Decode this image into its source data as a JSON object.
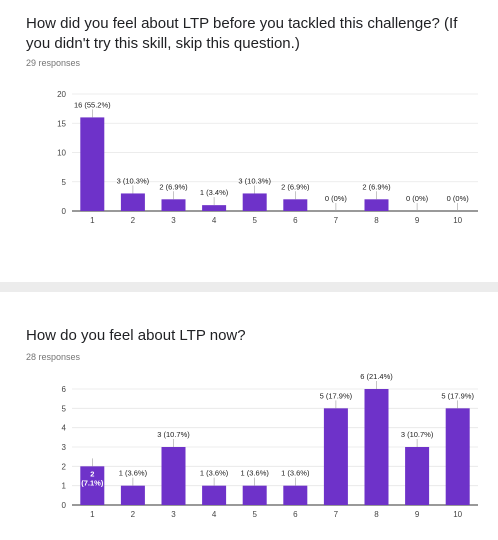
{
  "colors": {
    "bar": "#6e32c9",
    "grid": "#e6e6e6",
    "axis": "#333333"
  },
  "questions": [
    {
      "title": "How did you feel about LTP before you tackled this challenge? (If you didn't try this skill, skip this question.)",
      "responses": "29 responses"
    },
    {
      "title": "How do you feel about LTP now?",
      "responses": "28 responses"
    }
  ],
  "chart_data": [
    {
      "type": "bar",
      "categories": [
        "1",
        "2",
        "3",
        "4",
        "5",
        "6",
        "7",
        "8",
        "9",
        "10"
      ],
      "values": [
        16,
        3,
        2,
        1,
        3,
        2,
        0,
        2,
        0,
        0
      ],
      "data_labels": [
        "16 (55.2%)",
        "3 (10.3%)",
        "2 (6.9%)",
        "1 (3.4%)",
        "3 (10.3%)",
        "2 (6.9%)",
        "0 (0%)",
        "2 (6.9%)",
        "0 (0%)",
        "0 (0%)"
      ],
      "yticks": [
        "0",
        "5",
        "10",
        "15",
        "20"
      ],
      "ylim": [
        0,
        20
      ],
      "grid": true,
      "title": "",
      "xlabel": "",
      "ylabel": ""
    },
    {
      "type": "bar",
      "categories": [
        "1",
        "2",
        "3",
        "4",
        "5",
        "6",
        "7",
        "8",
        "9",
        "10"
      ],
      "values": [
        2,
        1,
        3,
        1,
        1,
        1,
        5,
        6,
        3,
        5
      ],
      "data_labels": [
        "2 (7.1%)",
        "1 (3.6%)",
        "3 (10.7%)",
        "1 (3.6%)",
        "1 (3.6%)",
        "1 (3.6%)",
        "5 (17.9%)",
        "6 (21.4%)",
        "3 (10.7%)",
        "5 (17.9%)"
      ],
      "yticks": [
        "0",
        "1",
        "2",
        "3",
        "4",
        "5",
        "6"
      ],
      "ylim": [
        0,
        6
      ],
      "grid": true,
      "title": "",
      "xlabel": "",
      "ylabel": ""
    }
  ]
}
